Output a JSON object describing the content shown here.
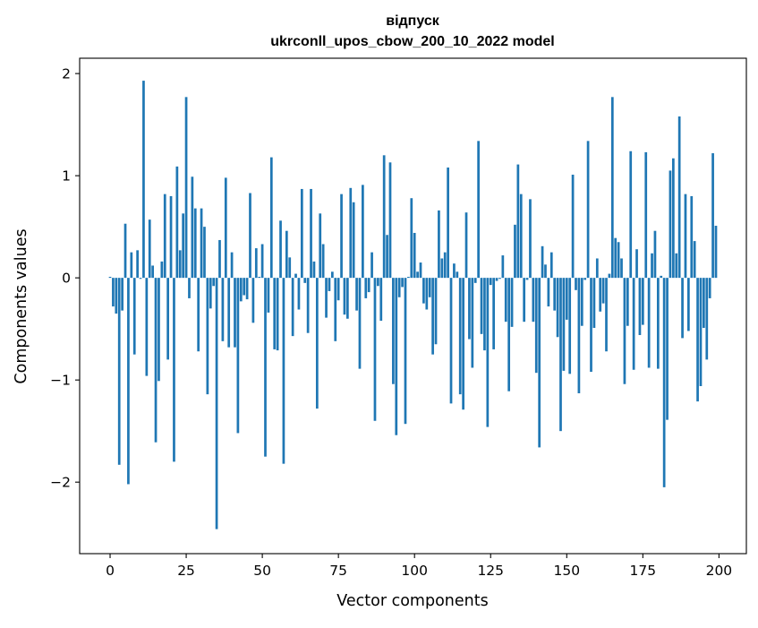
{
  "chart_data": {
    "type": "bar",
    "title": "відпуск",
    "subtitle": "ukrconll_upos_cbow_200_10_2022 model",
    "xlabel": "Vector components",
    "ylabel": "Components values",
    "xlim": [
      -10,
      209
    ],
    "ylim": [
      -2.7,
      2.15
    ],
    "xticks": [
      0,
      25,
      50,
      75,
      100,
      125,
      150,
      175,
      200
    ],
    "yticks": [
      -2,
      -1,
      0,
      1,
      2
    ],
    "xtick_labels": [
      "0",
      "25",
      "50",
      "75",
      "100",
      "125",
      "150",
      "175",
      "200"
    ],
    "ytick_labels": [
      "−2",
      "−1",
      "0",
      "1",
      "2"
    ],
    "grid": false,
    "color": "#1f77b4",
    "x": [
      0,
      1,
      2,
      3,
      4,
      5,
      6,
      7,
      8,
      9,
      10,
      11,
      12,
      13,
      14,
      15,
      16,
      17,
      18,
      19,
      20,
      21,
      22,
      23,
      24,
      25,
      26,
      27,
      28,
      29,
      30,
      31,
      32,
      33,
      34,
      35,
      36,
      37,
      38,
      39,
      40,
      41,
      42,
      43,
      44,
      45,
      46,
      47,
      48,
      49,
      50,
      51,
      52,
      53,
      54,
      55,
      56,
      57,
      58,
      59,
      60,
      61,
      62,
      63,
      64,
      65,
      66,
      67,
      68,
      69,
      70,
      71,
      72,
      73,
      74,
      75,
      76,
      77,
      78,
      79,
      80,
      81,
      82,
      83,
      84,
      85,
      86,
      87,
      88,
      89,
      90,
      91,
      92,
      93,
      94,
      95,
      96,
      97,
      98,
      99,
      100,
      101,
      102,
      103,
      104,
      105,
      106,
      107,
      108,
      109,
      110,
      111,
      112,
      113,
      114,
      115,
      116,
      117,
      118,
      119,
      120,
      121,
      122,
      123,
      124,
      125,
      126,
      127,
      128,
      129,
      130,
      131,
      132,
      133,
      134,
      135,
      136,
      137,
      138,
      139,
      140,
      141,
      142,
      143,
      144,
      145,
      146,
      147,
      148,
      149,
      150,
      151,
      152,
      153,
      154,
      155,
      156,
      157,
      158,
      159,
      160,
      161,
      162,
      163,
      164,
      165,
      166,
      167,
      168,
      169,
      170,
      171,
      172,
      173,
      174,
      175,
      176,
      177,
      178,
      179,
      180,
      181,
      182,
      183,
      184,
      185,
      186,
      187,
      188,
      189,
      190,
      191,
      192,
      193,
      194,
      195,
      196,
      197,
      198,
      199
    ],
    "values": [
      0.01,
      -0.28,
      -0.35,
      -1.83,
      -0.32,
      0.53,
      -2.02,
      0.25,
      -0.75,
      0.27,
      -0.01,
      1.93,
      -0.96,
      0.57,
      0.12,
      -1.61,
      -1.01,
      0.16,
      0.82,
      -0.8,
      0.8,
      -1.8,
      1.09,
      0.27,
      0.63,
      1.77,
      -0.2,
      0.99,
      0.68,
      -0.72,
      0.68,
      0.5,
      -1.14,
      -0.3,
      -0.08,
      -2.46,
      0.37,
      -0.62,
      0.98,
      -0.68,
      0.25,
      -0.68,
      -1.52,
      -0.23,
      -0.17,
      -0.21,
      0.83,
      -0.44,
      0.29,
      0.01,
      0.33,
      -1.75,
      -0.34,
      1.18,
      -0.7,
      -0.71,
      0.56,
      -1.82,
      0.46,
      0.2,
      -0.57,
      0.04,
      -0.31,
      0.87,
      -0.05,
      -0.54,
      0.87,
      0.16,
      -1.28,
      0.63,
      0.33,
      -0.39,
      -0.13,
      0.06,
      -0.62,
      -0.22,
      0.82,
      -0.36,
      -0.4,
      0.88,
      0.74,
      -0.32,
      -0.89,
      0.91,
      -0.2,
      -0.14,
      0.25,
      -1.4,
      -0.08,
      -0.42,
      1.2,
      0.42,
      1.13,
      -1.04,
      -1.54,
      -0.19,
      -0.09,
      -1.43,
      0.01,
      0.78,
      0.44,
      0.06,
      0.15,
      -0.25,
      -0.31,
      -0.19,
      -0.75,
      -0.65,
      0.66,
      0.19,
      0.25,
      1.08,
      -1.23,
      0.14,
      0.06,
      -1.14,
      -1.29,
      0.64,
      -0.6,
      -0.88,
      -0.05,
      1.34,
      -0.55,
      -0.71,
      -1.46,
      -0.07,
      -0.7,
      -0.03,
      -0.01,
      0.22,
      -0.43,
      -1.11,
      -0.48,
      0.52,
      1.11,
      0.82,
      -0.43,
      -0.02,
      0.77,
      -0.43,
      -0.93,
      -1.66,
      0.31,
      0.13,
      -0.28,
      0.25,
      -0.32,
      -0.58,
      -1.5,
      -0.91,
      -0.41,
      -0.94,
      1.01,
      -0.12,
      -1.13,
      -0.47,
      -0.02,
      1.34,
      -0.92,
      -0.49,
      0.19,
      -0.33,
      -0.25,
      -0.72,
      0.04,
      1.77,
      0.39,
      0.35,
      0.19,
      -1.04,
      -0.47,
      1.24,
      -0.9,
      0.28,
      -0.56,
      -0.46,
      1.23,
      -0.88,
      0.24,
      0.46,
      -0.89,
      0.02,
      -2.05,
      -1.39,
      1.05,
      1.17,
      0.24,
      1.58,
      -0.59,
      0.82,
      -0.52,
      0.8,
      0.36,
      -1.21,
      -1.06,
      -0.49,
      -0.8,
      -0.2,
      1.22,
      0.51
    ]
  }
}
